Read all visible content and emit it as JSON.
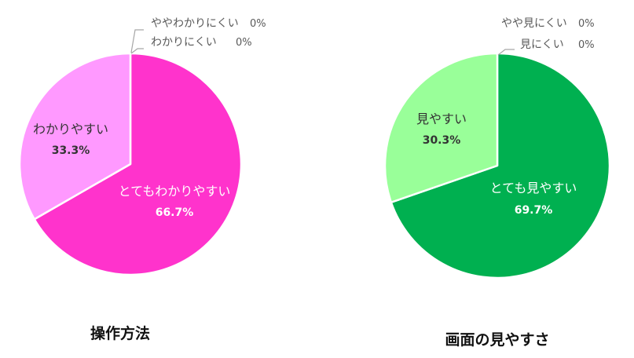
{
  "chart_data": [
    {
      "type": "pie",
      "title": "操作方法",
      "slices": [
        {
          "label": "とてもわかりやすい",
          "value": 66.7,
          "value_label": "66.7%",
          "color": "#ff33cc",
          "label_color": "#ffffff"
        },
        {
          "label": "わかりやすい",
          "value": 33.3,
          "value_label": "33.3%",
          "color": "#ff99ff",
          "label_color": "#333333"
        },
        {
          "label": "ややわかりにくい",
          "value": 0,
          "value_label": "0%",
          "color": "#ff66dd",
          "label_color": "#595959"
        },
        {
          "label": "わかりにくい",
          "value": 0,
          "value_label": "0%",
          "color": "#cc00aa",
          "label_color": "#595959"
        }
      ]
    },
    {
      "type": "pie",
      "title": "画面の見やすさ",
      "slices": [
        {
          "label": "とても見やすい",
          "value": 69.7,
          "value_label": "69.7%",
          "color": "#00b050",
          "label_color": "#ffffff"
        },
        {
          "label": "見やすい",
          "value": 30.3,
          "value_label": "30.3%",
          "color": "#99ff99",
          "label_color": "#333333"
        },
        {
          "label": "やや見にくい",
          "value": 0,
          "value_label": "0%",
          "color": "#66cc66",
          "label_color": "#595959"
        },
        {
          "label": "見にくい",
          "value": 0,
          "value_label": "0%",
          "color": "#007a33",
          "label_color": "#595959"
        }
      ]
    }
  ]
}
